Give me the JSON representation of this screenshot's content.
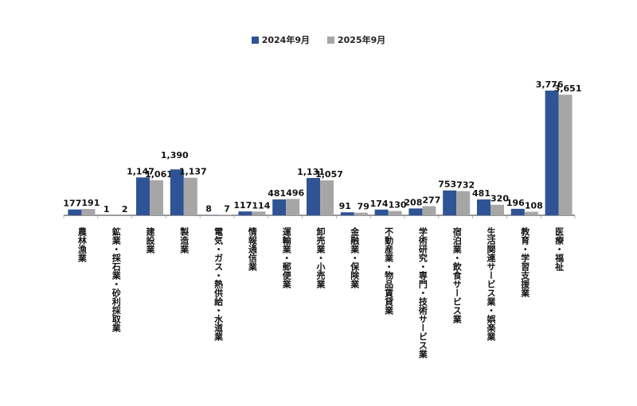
{
  "chart_data": {
    "type": "bar",
    "title": "",
    "xlabel": "",
    "ylabel": "",
    "ylim": [
      0,
      4000
    ],
    "grid": false,
    "legend_position": "top",
    "categories": [
      "農林漁業",
      "鉱業・採石業・砂利採取業",
      "建設業",
      "製造業",
      "電気・ガス・熱供給・水道業",
      "情報通信業",
      "運輸業・郵便業",
      "卸売業・小売業",
      "金融業・保険業",
      "不動産業・物品賃貸業",
      "学術研究・専門・技術サービス業",
      "宿泊業・飲食サービス業",
      "生活関連サービス業・娯楽業",
      "教育・学習支援業",
      "医療・福祉"
    ],
    "series": [
      {
        "name": "2024年9月",
        "color": "#2f5496",
        "values": [
          177,
          1,
          1147,
          1390,
          8,
          117,
          481,
          1131,
          91,
          174,
          208,
          753,
          481,
          196,
          3776
        ]
      },
      {
        "name": "2025年9月",
        "color": "#a6a6a6",
        "values": [
          191,
          2,
          1061,
          1137,
          7,
          114,
          496,
          1057,
          79,
          130,
          277,
          732,
          320,
          108,
          3651
        ]
      }
    ]
  }
}
